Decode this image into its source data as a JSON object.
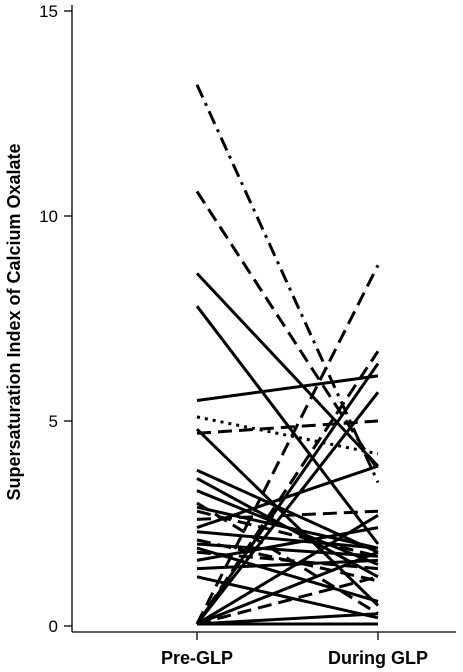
{
  "chart_data": {
    "type": "line",
    "ylabel": "Supersaturation Index of Calcium Oxalate",
    "xlabel": "",
    "categories": [
      "Pre-GLP",
      "During GLP"
    ],
    "ylim": [
      0,
      15
    ],
    "yticks": [
      "0",
      "5",
      "10",
      "15"
    ],
    "grid": false,
    "series": [
      {
        "values": [
          13.2,
          3.5
        ],
        "dash": "dashdot"
      },
      {
        "values": [
          10.6,
          3.8
        ],
        "dash": "dashed"
      },
      {
        "values": [
          8.6,
          3.9
        ],
        "dash": "solid"
      },
      {
        "values": [
          7.8,
          2.0
        ],
        "dash": "solid"
      },
      {
        "values": [
          5.5,
          6.1
        ],
        "dash": "solid"
      },
      {
        "values": [
          5.1,
          4.2
        ],
        "dash": "dotted"
      },
      {
        "values": [
          4.8,
          0.5
        ],
        "dash": "solid"
      },
      {
        "values": [
          4.7,
          5.0
        ],
        "dash": "dashed"
      },
      {
        "values": [
          3.8,
          1.8
        ],
        "dash": "solid"
      },
      {
        "values": [
          3.6,
          1.2
        ],
        "dash": "solid"
      },
      {
        "values": [
          3.3,
          1.5
        ],
        "dash": "solid"
      },
      {
        "values": [
          3.0,
          0.3
        ],
        "dash": "dashed"
      },
      {
        "values": [
          2.9,
          1.9
        ],
        "dash": "solid"
      },
      {
        "values": [
          2.8,
          1.7
        ],
        "dash": "dashed"
      },
      {
        "values": [
          2.6,
          2.8
        ],
        "dash": "dashed"
      },
      {
        "values": [
          2.4,
          3.9
        ],
        "dash": "solid"
      },
      {
        "values": [
          2.3,
          1.9
        ],
        "dash": "solid"
      },
      {
        "values": [
          2.1,
          1.1
        ],
        "dash": "dashed"
      },
      {
        "values": [
          2.0,
          1.7
        ],
        "dash": "solid"
      },
      {
        "values": [
          1.9,
          0.6
        ],
        "dash": "solid"
      },
      {
        "values": [
          1.8,
          1.4
        ],
        "dash": "dashed"
      },
      {
        "values": [
          1.6,
          2.4
        ],
        "dash": "solid"
      },
      {
        "values": [
          1.4,
          1.6
        ],
        "dash": "solid"
      },
      {
        "values": [
          1.2,
          0.2
        ],
        "dash": "solid"
      },
      {
        "values": [
          0.05,
          8.8
        ],
        "dash": "dashed"
      },
      {
        "values": [
          0.05,
          6.7
        ],
        "dash": "dashed"
      },
      {
        "values": [
          0.05,
          6.4
        ],
        "dash": "solid"
      },
      {
        "values": [
          0.05,
          5.7
        ],
        "dash": "solid"
      },
      {
        "values": [
          0.05,
          2.7
        ],
        "dash": "solid"
      },
      {
        "values": [
          0.05,
          1.8
        ],
        "dash": "solid"
      },
      {
        "values": [
          0.05,
          1.2
        ],
        "dash": "dashed"
      },
      {
        "values": [
          0.05,
          0.3
        ],
        "dash": "solid"
      },
      {
        "values": [
          0.05,
          0.05
        ],
        "dash": "solid"
      }
    ]
  }
}
